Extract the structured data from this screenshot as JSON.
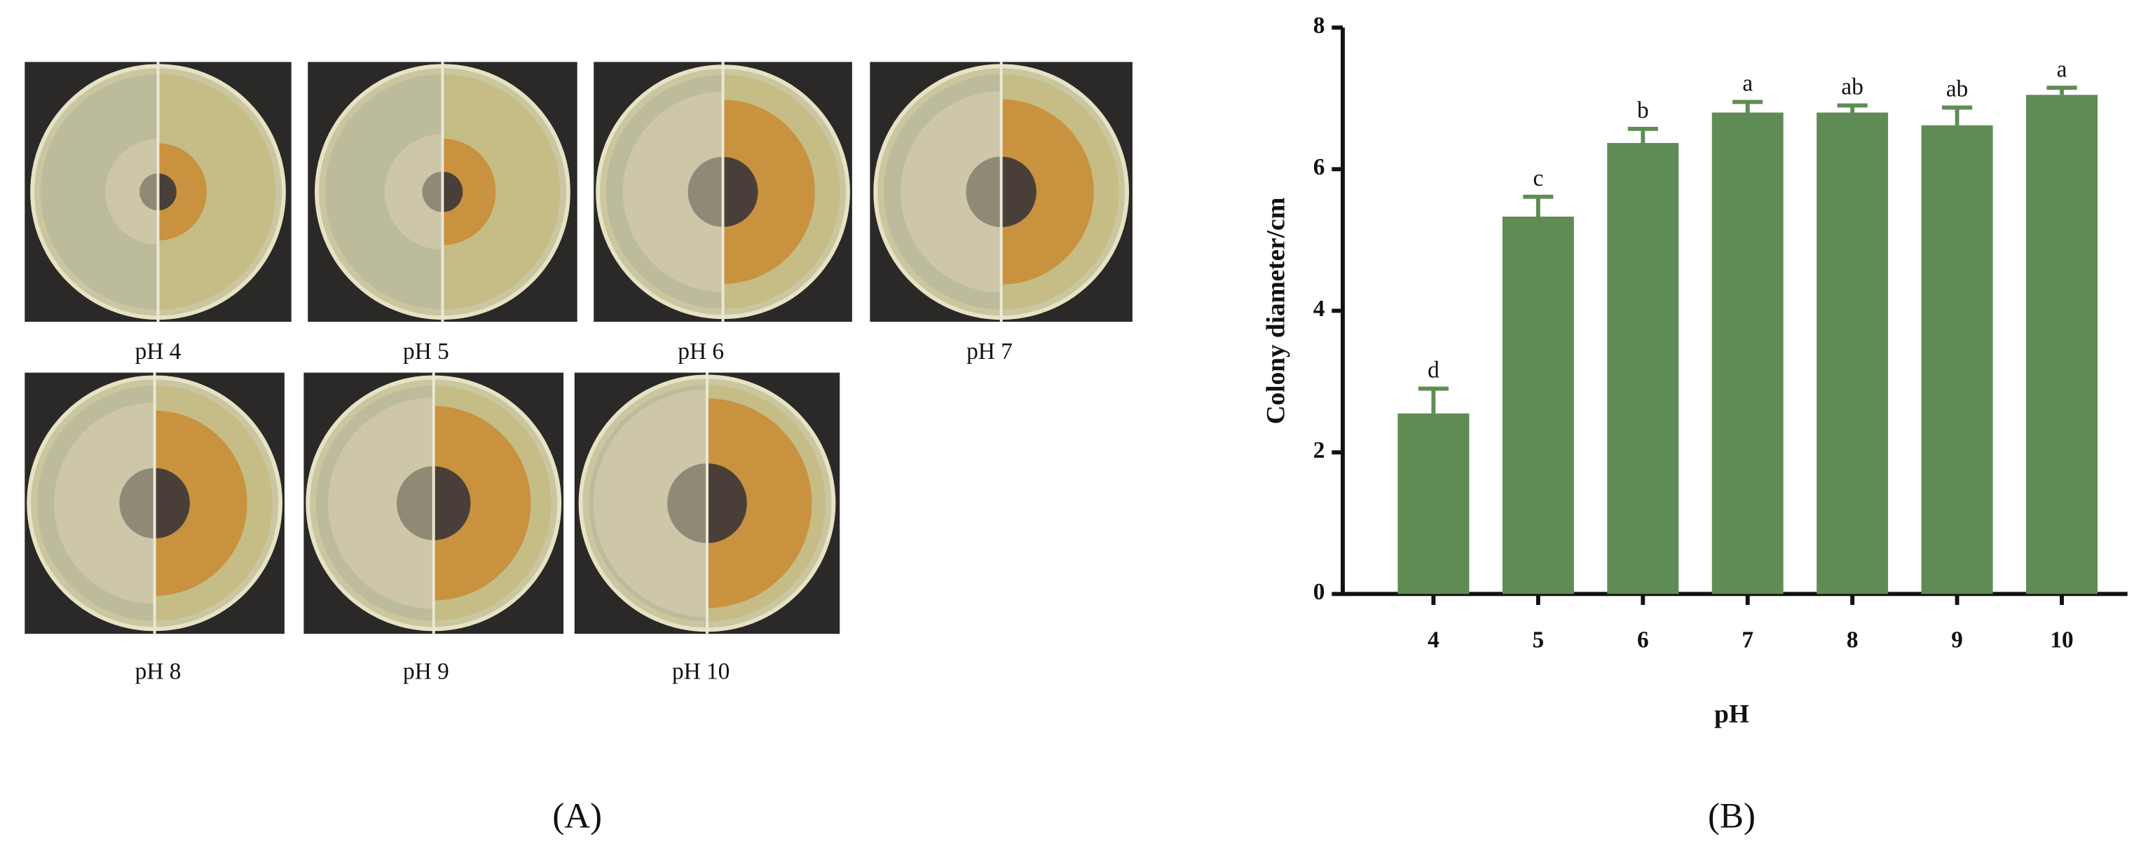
{
  "panel_a": {
    "label": "(A)",
    "captions": [
      "pH 4",
      "pH 5",
      "pH 6",
      "pH 7",
      "pH 8",
      "pH 9",
      "pH 10"
    ]
  },
  "panel_b": {
    "label": "(B)"
  },
  "chart_data": {
    "type": "bar",
    "x_label": "pH",
    "y_label": "Colony diameter/cm",
    "categories": [
      "4",
      "5",
      "6",
      "7",
      "8",
      "9",
      "10"
    ],
    "values": [
      2.55,
      5.33,
      6.37,
      6.8,
      6.8,
      6.62,
      7.05
    ],
    "errors": [
      0.35,
      0.28,
      0.2,
      0.15,
      0.1,
      0.25,
      0.1
    ],
    "significance_letters": [
      "d",
      "c",
      "b",
      "a",
      "ab",
      "ab",
      "a"
    ],
    "color": "#5f8c55",
    "ylim": [
      0,
      8
    ],
    "yticks": [
      0,
      2,
      4,
      6,
      8
    ],
    "grid": false
  }
}
